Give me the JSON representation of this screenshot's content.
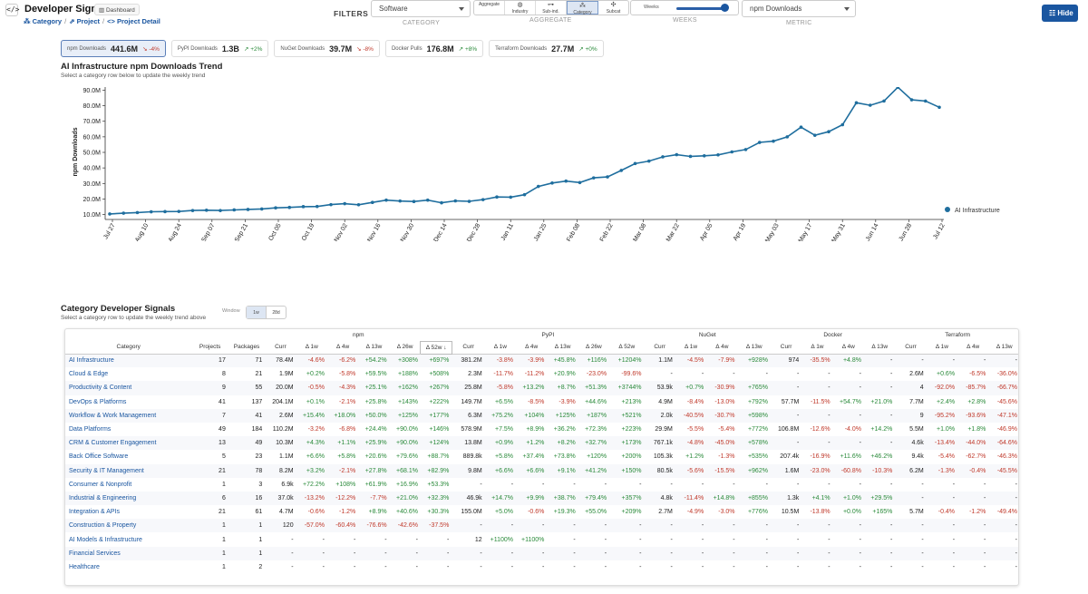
{
  "header": {
    "title": "Developer Signals",
    "dashboard_label": "Dashboard",
    "code_icon": "</>",
    "breadcrumb": [
      "Category",
      "Project",
      "Project Detail"
    ],
    "hide_label": "Hide"
  },
  "filters": {
    "label": "FILTERS",
    "category_value": "Software",
    "category_caption": "CATEGORY",
    "aggregate_caption": "AGGREGATE",
    "aggregate_options": [
      "Aggregate",
      "Industry",
      "Sub-ind.",
      "Category",
      "Subcat"
    ],
    "aggregate_selected": "Category",
    "weeks_label": "Weeks",
    "weeks_caption": "WEEKS",
    "weeks_value": 0.96,
    "metric_value": "npm Downloads",
    "metric_caption": "METRIC"
  },
  "kpis": [
    {
      "name": "npm Downloads",
      "value": "441.6M",
      "change": "-4%",
      "dir": "dn",
      "active": true
    },
    {
      "name": "PyPI Downloads",
      "value": "1.3B",
      "change": "+2%",
      "dir": "up",
      "active": false
    },
    {
      "name": "NuGet Downloads",
      "value": "39.7M",
      "change": "-8%",
      "dir": "dn",
      "active": false
    },
    {
      "name": "Docker Pulls",
      "value": "176.8M",
      "change": "+8%",
      "dir": "up",
      "active": false
    },
    {
      "name": "Terraform Downloads",
      "value": "27.7M",
      "change": "+0%",
      "dir": "up",
      "active": false
    }
  ],
  "trend": {
    "title": "AI Infrastructure npm Downloads Trend",
    "subtitle": "Select a category row below to update the weekly trend"
  },
  "chart_data": {
    "type": "line",
    "title": "AI Infrastructure npm Downloads Trend",
    "ylabel": "npm Downloads",
    "xlabel": "",
    "ylim": [
      8.6,
      92
    ],
    "yticks": [
      "10.0M",
      "20.0M",
      "30.0M",
      "40.0M",
      "50.0M",
      "60.0M",
      "70.0M",
      "80.0M",
      "90.0M"
    ],
    "xticks": [
      "Jul 27",
      "Aug 10",
      "Aug 24",
      "Sep 07",
      "Sep 21",
      "Oct 05",
      "Oct 19",
      "Nov 02",
      "Nov 16",
      "Nov 30",
      "Dec 14",
      "Dec 28",
      "Jan 11",
      "Jan 25",
      "Feb 08",
      "Feb 22",
      "Mar 08",
      "Mar 22",
      "Apr 05",
      "Apr 19",
      "May 03",
      "May 17",
      "May 31",
      "Jun 14",
      "Jun 28",
      "Jul 12"
    ],
    "legend": "right",
    "series": [
      {
        "name": "AI Infrastructure",
        "color": "#1f6e9e",
        "values": [
          10.4,
          10.9,
          11.3,
          11.8,
          11.9,
          12.0,
          12.6,
          12.8,
          12.6,
          13.0,
          13.3,
          13.6,
          14.3,
          14.6,
          15.1,
          15.2,
          16.4,
          17.0,
          16.3,
          17.8,
          19.3,
          18.7,
          18.4,
          19.3,
          17.6,
          18.8,
          18.5,
          19.6,
          21.3,
          21.2,
          22.8,
          28.1,
          30.3,
          31.5,
          30.6,
          33.6,
          34.2,
          38.4,
          42.8,
          44.4,
          47.1,
          48.5,
          47.4,
          47.8,
          48.4,
          50.3,
          51.8,
          56.4,
          57.2,
          60.0,
          66.2,
          61.0,
          63.3,
          67.8,
          81.9,
          80.3,
          83.0,
          91.9,
          83.8,
          83.0,
          79.0
        ]
      }
    ]
  },
  "signals": {
    "title": "Category Developer Signals",
    "subtitle": "Select a category row to update the weekly trend above",
    "window_label": "Window",
    "window_options": [
      "1w",
      "28d"
    ],
    "groups": [
      "npm",
      "PyPI",
      "NuGet",
      "Docker",
      "Terraform"
    ],
    "headers": [
      "Category",
      "Projects",
      "Packages",
      "Curr",
      "Δ 1w",
      "Δ 4w",
      "Δ 13w",
      "Δ 26w",
      "Δ 52w",
      "Curr",
      "Δ 1w",
      "Δ 4w",
      "Δ 13w",
      "Δ 26w",
      "Δ 52w",
      "Curr",
      "Δ 1w",
      "Δ 4w",
      "Δ 13w",
      "Curr",
      "Δ 1w",
      "Δ 4w",
      "Δ 13w",
      "Curr",
      "Δ 1w",
      "Δ 4w",
      "Δ 13w"
    ],
    "rows": [
      [
        "AI Infrastructure",
        "17",
        "71",
        "78.4M",
        "-4.6%",
        "-6.2%",
        "+54.2%",
        "+308%",
        "+697%",
        "381.2M",
        "-3.8%",
        "-3.9%",
        "+45.8%",
        "+116%",
        "+1204%",
        "1.1M",
        "-4.5%",
        "-7.9%",
        "+928%",
        "974",
        "-35.5%",
        "+4.8%",
        "-",
        "-",
        "-",
        "-",
        "-"
      ],
      [
        "Cloud & Edge",
        "8",
        "21",
        "1.9M",
        "+0.2%",
        "-5.8%",
        "+59.5%",
        "+188%",
        "+508%",
        "2.3M",
        "-11.7%",
        "-11.2%",
        "+20.9%",
        "-23.0%",
        "-99.6%",
        "-",
        "-",
        "-",
        "-",
        "-",
        "-",
        "-",
        "-",
        "2.6M",
        "+0.6%",
        "-6.5%",
        "-36.0%"
      ],
      [
        "Productivity & Content",
        "9",
        "55",
        "20.0M",
        "-0.5%",
        "-4.3%",
        "+25.1%",
        "+162%",
        "+267%",
        "25.8M",
        "-5.8%",
        "+13.2%",
        "+8.7%",
        "+51.3%",
        "+3744%",
        "53.9k",
        "+0.7%",
        "-30.9%",
        "+765%",
        "-",
        "-",
        "-",
        "-",
        "4",
        "-92.0%",
        "-85.7%",
        "-66.7%"
      ],
      [
        "DevOps & Platforms",
        "41",
        "137",
        "204.1M",
        "+0.1%",
        "-2.1%",
        "+25.8%",
        "+143%",
        "+222%",
        "149.7M",
        "+6.5%",
        "-8.5%",
        "-3.9%",
        "+44.6%",
        "+213%",
        "4.9M",
        "-8.4%",
        "-13.0%",
        "+792%",
        "57.7M",
        "-11.5%",
        "+54.7%",
        "+21.0%",
        "7.7M",
        "+2.4%",
        "+2.8%",
        "-45.6%"
      ],
      [
        "Workflow & Work Management",
        "7",
        "41",
        "2.6M",
        "+15.4%",
        "+18.0%",
        "+50.0%",
        "+125%",
        "+177%",
        "6.3M",
        "+75.2%",
        "+104%",
        "+125%",
        "+187%",
        "+521%",
        "2.0k",
        "-40.5%",
        "-30.7%",
        "+598%",
        "-",
        "-",
        "-",
        "-",
        "9",
        "-95.2%",
        "-93.6%",
        "-47.1%"
      ],
      [
        "Data Platforms",
        "49",
        "184",
        "110.2M",
        "-3.2%",
        "-6.8%",
        "+24.4%",
        "+90.0%",
        "+146%",
        "578.9M",
        "+7.5%",
        "+8.9%",
        "+36.2%",
        "+72.3%",
        "+223%",
        "29.9M",
        "-5.5%",
        "-5.4%",
        "+772%",
        "106.8M",
        "-12.6%",
        "-4.0%",
        "+14.2%",
        "5.5M",
        "+1.0%",
        "+1.8%",
        "-46.9%"
      ],
      [
        "CRM & Customer Engagement",
        "13",
        "49",
        "10.3M",
        "+4.3%",
        "+1.1%",
        "+25.9%",
        "+90.0%",
        "+124%",
        "13.8M",
        "+0.9%",
        "+1.2%",
        "+8.2%",
        "+32.7%",
        "+173%",
        "767.1k",
        "-4.8%",
        "-45.0%",
        "+578%",
        "-",
        "-",
        "-",
        "-",
        "4.6k",
        "-13.4%",
        "-44.0%",
        "-64.6%"
      ],
      [
        "Back Office Software",
        "5",
        "23",
        "1.1M",
        "+6.6%",
        "+5.8%",
        "+20.6%",
        "+79.6%",
        "+88.7%",
        "889.8k",
        "+5.8%",
        "+37.4%",
        "+73.8%",
        "+120%",
        "+200%",
        "105.3k",
        "+1.2%",
        "-1.3%",
        "+535%",
        "207.4k",
        "-16.9%",
        "+11.6%",
        "+46.2%",
        "9.4k",
        "-5.4%",
        "-62.7%",
        "-46.3%"
      ],
      [
        "Security & IT Management",
        "21",
        "78",
        "8.2M",
        "+3.2%",
        "-2.1%",
        "+27.8%",
        "+68.1%",
        "+82.9%",
        "9.8M",
        "+6.6%",
        "+6.6%",
        "+9.1%",
        "+41.2%",
        "+150%",
        "80.5k",
        "-5.6%",
        "-15.5%",
        "+962%",
        "1.6M",
        "-23.0%",
        "-60.8%",
        "-10.3%",
        "6.2M",
        "-1.3%",
        "-0.4%",
        "-45.5%"
      ],
      [
        "Consumer & Nonprofit",
        "1",
        "3",
        "6.9k",
        "+72.2%",
        "+108%",
        "+61.9%",
        "+16.9%",
        "+53.3%",
        "-",
        "-",
        "-",
        "-",
        "-",
        "-",
        "-",
        "-",
        "-",
        "-",
        "-",
        "-",
        "-",
        "-",
        "-",
        "-",
        "-",
        "-"
      ],
      [
        "Industrial & Engineering",
        "6",
        "16",
        "37.0k",
        "-13.2%",
        "-12.2%",
        "-7.7%",
        "+21.0%",
        "+32.3%",
        "46.9k",
        "+14.7%",
        "+9.9%",
        "+38.7%",
        "+79.4%",
        "+357%",
        "4.8k",
        "-11.4%",
        "+14.8%",
        "+855%",
        "1.3k",
        "+4.1%",
        "+1.0%",
        "+29.5%",
        "-",
        "-",
        "-",
        "-"
      ],
      [
        "Integration & APIs",
        "21",
        "61",
        "4.7M",
        "-0.6%",
        "-1.2%",
        "+8.9%",
        "+40.6%",
        "+30.3%",
        "155.0M",
        "+5.0%",
        "-0.6%",
        "+19.3%",
        "+55.0%",
        "+209%",
        "2.7M",
        "-4.9%",
        "-3.0%",
        "+776%",
        "10.5M",
        "-13.8%",
        "+0.0%",
        "+165%",
        "5.7M",
        "-0.4%",
        "-1.2%",
        "-49.4%"
      ],
      [
        "Construction & Property",
        "1",
        "1",
        "120",
        "-57.0%",
        "-60.4%",
        "-76.6%",
        "-42.6%",
        "-37.5%",
        "-",
        "-",
        "-",
        "-",
        "-",
        "-",
        "-",
        "-",
        "-",
        "-",
        "-",
        "-",
        "-",
        "-",
        "-",
        "-",
        "-",
        "-"
      ],
      [
        "AI Models & Infrastructure",
        "1",
        "1",
        "-",
        "-",
        "-",
        "-",
        "-",
        "-",
        "12",
        "+1100%",
        "+1100%",
        "-",
        "-",
        "-",
        "-",
        "-",
        "-",
        "-",
        "-",
        "-",
        "-",
        "-",
        "-",
        "-",
        "-",
        "-"
      ],
      [
        "Financial Services",
        "1",
        "1",
        "-",
        "-",
        "-",
        "-",
        "-",
        "-",
        "-",
        "-",
        "-",
        "-",
        "-",
        "-",
        "-",
        "-",
        "-",
        "-",
        "-",
        "-",
        "-",
        "-",
        "-",
        "-",
        "-",
        "-"
      ],
      [
        "Healthcare",
        "1",
        "2",
        "-",
        "-",
        "-",
        "-",
        "-",
        "-",
        "-",
        "-",
        "-",
        "-",
        "-",
        "-",
        "-",
        "-",
        "-",
        "-",
        "-",
        "-",
        "-",
        "-",
        "-",
        "-",
        "-",
        "-"
      ]
    ]
  }
}
